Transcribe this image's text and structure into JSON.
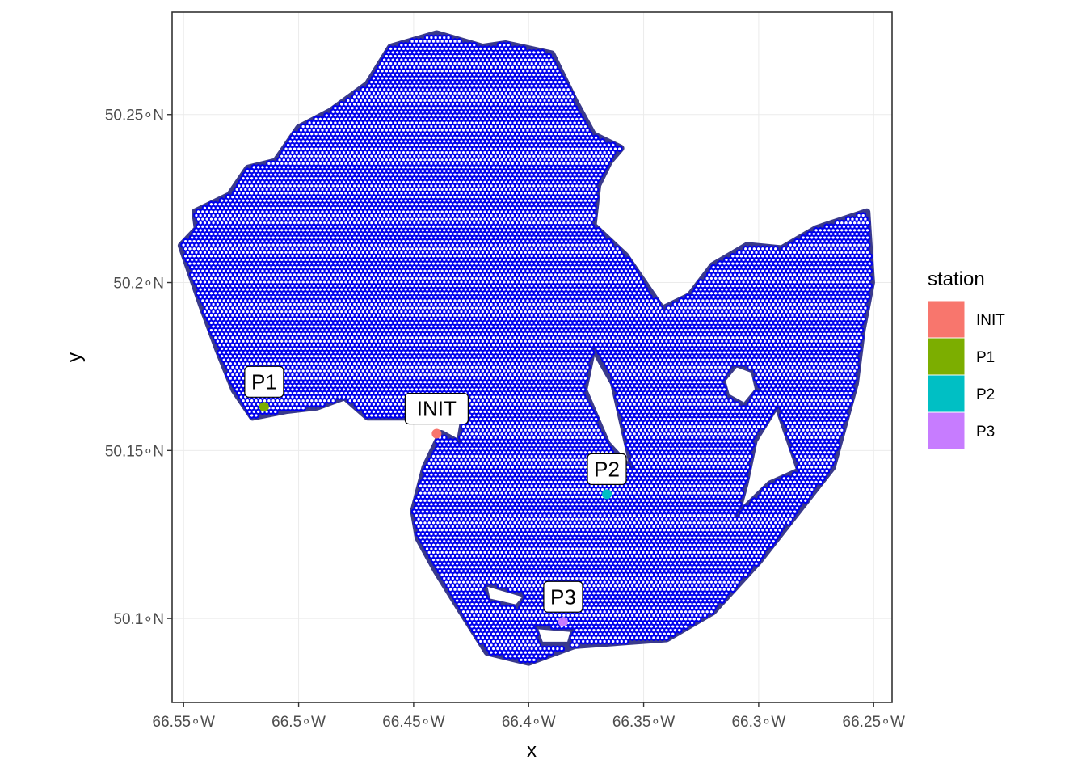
{
  "chart_data": {
    "type": "scatter",
    "xlabel": "x",
    "ylabel": "y",
    "xlim": [
      -66.555,
      -66.242
    ],
    "ylim": [
      50.075,
      50.2805
    ],
    "x_ticks": [
      {
        "value": -66.55,
        "label": "66.55∘W"
      },
      {
        "value": -66.5,
        "label": "66.5∘W"
      },
      {
        "value": -66.45,
        "label": "66.45∘W"
      },
      {
        "value": -66.4,
        "label": "66.4∘W"
      },
      {
        "value": -66.35,
        "label": "66.35∘W"
      },
      {
        "value": -66.3,
        "label": "66.3∘W"
      },
      {
        "value": -66.25,
        "label": "66.25∘W"
      }
    ],
    "y_ticks": [
      {
        "value": 50.1,
        "label": "50.1∘N"
      },
      {
        "value": 50.15,
        "label": "50.15∘N"
      },
      {
        "value": 50.2,
        "label": "50.2∘N"
      },
      {
        "value": 50.25,
        "label": "50.25∘N"
      }
    ],
    "grid": true,
    "legend": {
      "title": "station",
      "placement": "right",
      "items": [
        {
          "name": "INIT",
          "color": "#F8766D"
        },
        {
          "name": "P1",
          "color": "#7CAE00"
        },
        {
          "name": "P2",
          "color": "#00BFC4"
        },
        {
          "name": "P3",
          "color": "#C77CFF"
        }
      ]
    },
    "stations": [
      {
        "name": "INIT",
        "x": -66.44,
        "y": 50.155,
        "color": "#F8766D"
      },
      {
        "name": "P1",
        "x": -66.515,
        "y": 50.163,
        "color": "#7CAE00"
      },
      {
        "name": "P2",
        "x": -66.366,
        "y": 50.137,
        "color": "#00BFC4"
      },
      {
        "name": "P3",
        "x": -66.385,
        "y": 50.099,
        "color": "#C77CFF"
      }
    ],
    "hex_grid": {
      "fill_color": "#ffffff",
      "stroke_color": "#0000ee",
      "outline_color": "#3a3a8c",
      "cell_size": 0.00185,
      "region": [
        [
          -66.551,
          50.211
        ],
        [
          -66.544,
          50.216
        ],
        [
          -66.545,
          50.221
        ],
        [
          -66.53,
          50.226
        ],
        [
          -66.522,
          50.234
        ],
        [
          -66.51,
          50.236
        ],
        [
          -66.5,
          50.246
        ],
        [
          -66.486,
          50.251
        ],
        [
          -66.47,
          50.259
        ],
        [
          -66.46,
          50.27
        ],
        [
          -66.44,
          50.274
        ],
        [
          -66.42,
          50.27
        ],
        [
          -66.41,
          50.271
        ],
        [
          -66.39,
          50.268
        ],
        [
          -66.38,
          50.254
        ],
        [
          -66.372,
          50.244
        ],
        [
          -66.36,
          50.24
        ],
        [
          -66.365,
          50.236
        ],
        [
          -66.37,
          50.229
        ],
        [
          -66.372,
          50.217
        ],
        [
          -66.358,
          50.208
        ],
        [
          -66.35,
          50.2
        ],
        [
          -66.342,
          50.192
        ],
        [
          -66.33,
          50.196
        ],
        [
          -66.32,
          50.205
        ],
        [
          -66.305,
          50.211
        ],
        [
          -66.29,
          50.21
        ],
        [
          -66.275,
          50.216
        ],
        [
          -66.253,
          50.221
        ],
        [
          -66.251,
          50.2
        ],
        [
          -66.255,
          50.186
        ],
        [
          -66.258,
          50.17
        ],
        [
          -66.268,
          50.145
        ],
        [
          -66.3,
          50.117
        ],
        [
          -66.32,
          50.102
        ],
        [
          -66.34,
          50.094
        ],
        [
          -66.38,
          50.092
        ],
        [
          -66.4,
          50.087
        ],
        [
          -66.418,
          50.09
        ],
        [
          -66.43,
          50.103
        ],
        [
          -66.44,
          50.114
        ],
        [
          -66.448,
          50.124
        ],
        [
          -66.45,
          50.132
        ],
        [
          -66.445,
          50.145
        ],
        [
          -66.438,
          50.155
        ],
        [
          -66.43,
          50.152
        ],
        [
          -66.428,
          50.16
        ],
        [
          -66.47,
          50.16
        ],
        [
          -66.48,
          50.166
        ],
        [
          -66.492,
          50.163
        ],
        [
          -66.505,
          50.162
        ],
        [
          -66.52,
          50.16
        ],
        [
          -66.528,
          50.168
        ],
        [
          -66.535,
          50.18
        ],
        [
          -66.542,
          50.193
        ],
        [
          -66.548,
          50.205
        ]
      ],
      "holes": [
        [
          [
            -66.372,
            50.181
          ],
          [
            -66.363,
            50.17
          ],
          [
            -66.359,
            50.158
          ],
          [
            -66.354,
            50.143
          ],
          [
            -66.366,
            50.152
          ],
          [
            -66.376,
            50.168
          ]
        ],
        [
          [
            -66.31,
            50.176
          ],
          [
            -66.302,
            50.174
          ],
          [
            -66.3,
            50.168
          ],
          [
            -66.306,
            50.163
          ],
          [
            -66.314,
            50.166
          ],
          [
            -66.316,
            50.171
          ]
        ],
        [
          [
            -66.292,
            50.164
          ],
          [
            -66.282,
            50.144
          ],
          [
            -66.295,
            50.14
          ],
          [
            -66.31,
            50.13
          ],
          [
            -66.306,
            50.14
          ],
          [
            -66.302,
            50.153
          ]
        ],
        [
          [
            -66.42,
            50.111
          ],
          [
            -66.4,
            50.107
          ],
          [
            -66.405,
            50.103
          ],
          [
            -66.418,
            50.105
          ]
        ],
        [
          [
            -66.398,
            50.098
          ],
          [
            -66.38,
            50.097
          ],
          [
            -66.382,
            50.092
          ],
          [
            -66.395,
            50.092
          ]
        ]
      ]
    }
  }
}
